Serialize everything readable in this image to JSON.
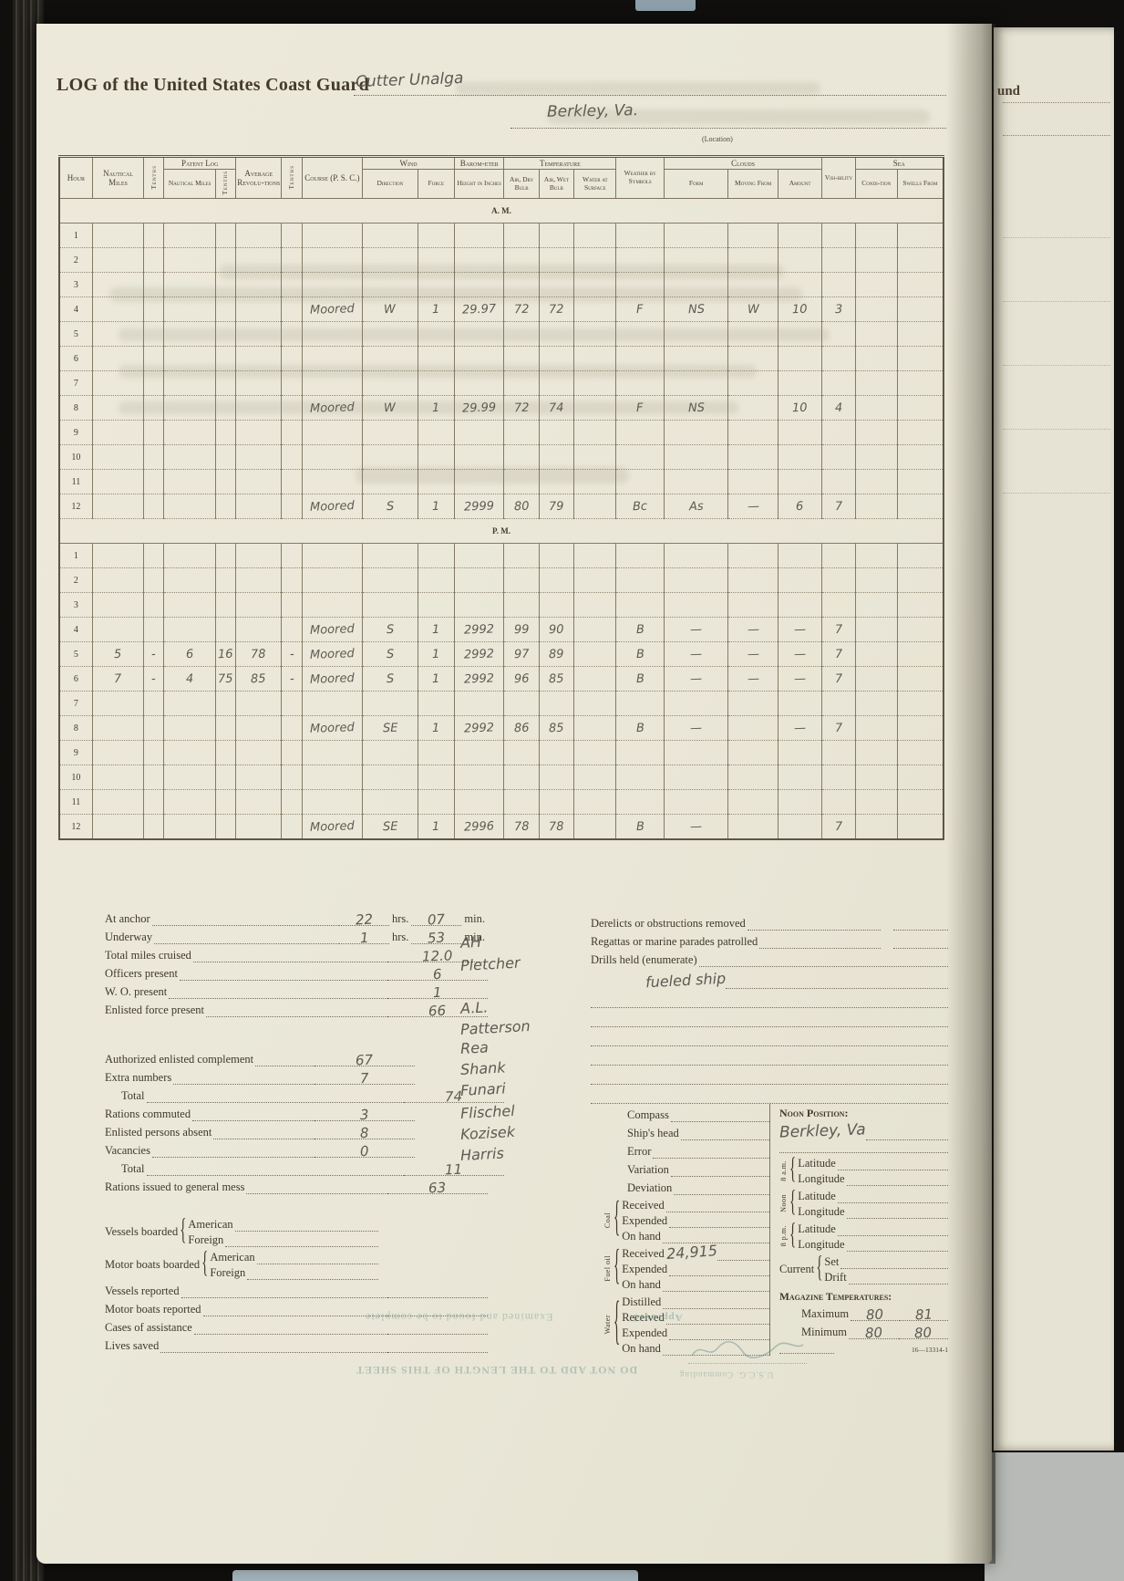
{
  "header": {
    "title": "LOG of the United States Coast Guard",
    "vessel": "Cutter Unalga",
    "location": "Berkley, Va.",
    "location_caption": "(Location)"
  },
  "log_table": {
    "columns": {
      "hour": "Hour",
      "nautical_miles": "Nautical Miles",
      "tenths": "Tenths",
      "patent_log": "Patent Log",
      "avg_revolutions": "Average Revolu-tions",
      "course": "Course (P. S. C.)",
      "wind": "Wind",
      "direction": "Direction",
      "force": "Force",
      "barometer": "Barom-eter",
      "height_in_inches": "Height in Inches",
      "temperature": "Temperature",
      "air_dry_bulb": "Air, Dry Bulb",
      "air_wet_bulb": "Air, Wet Bulb",
      "water_at_surface": "Water at Surface",
      "weather_by_symbols": "Weather by Symbols",
      "clouds": "Clouds",
      "form": "Form",
      "moving_from": "Moving From",
      "amount": "Amount",
      "visibility": "Visi-bility",
      "sea": "Sea",
      "condition": "Condi-tion",
      "swells_from": "Swells From"
    },
    "rows": [
      {
        "t": "s",
        "label": "A. M."
      },
      {
        "t": "h",
        "hour": "1",
        "c": {}
      },
      {
        "t": "h",
        "hour": "2",
        "c": {}
      },
      {
        "t": "h",
        "hour": "3",
        "c": {}
      },
      {
        "t": "h",
        "hour": "4",
        "c": {
          "course": "Moored",
          "dir": "W",
          "force": "1",
          "bar": "29.97",
          "dry": "72",
          "wet": "72",
          "wx": "F",
          "cForm": "NS",
          "cMov": "W",
          "cAmt": "10",
          "vis": "3"
        }
      },
      {
        "t": "h",
        "hour": "5",
        "c": {}
      },
      {
        "t": "h",
        "hour": "6",
        "c": {}
      },
      {
        "t": "h",
        "hour": "7",
        "c": {}
      },
      {
        "t": "h",
        "hour": "8",
        "c": {
          "course": "Moored",
          "dir": "W",
          "force": "1",
          "bar": "29.99",
          "dry": "72",
          "wet": "74",
          "wx": "F",
          "cForm": "NS",
          "cAmt": "10",
          "vis": "4"
        }
      },
      {
        "t": "h",
        "hour": "9",
        "c": {}
      },
      {
        "t": "h",
        "hour": "10",
        "c": {}
      },
      {
        "t": "h",
        "hour": "11",
        "c": {}
      },
      {
        "t": "h",
        "hour": "12",
        "c": {
          "course": "Moored",
          "dir": "S",
          "force": "1",
          "bar": "2999",
          "dry": "80",
          "wet": "79",
          "wx": "Bc",
          "cForm": "As",
          "cMov": "—",
          "cAmt": "6",
          "vis": "7"
        }
      },
      {
        "t": "s",
        "label": "P. M."
      },
      {
        "t": "h",
        "hour": "1",
        "c": {}
      },
      {
        "t": "h",
        "hour": "2",
        "c": {}
      },
      {
        "t": "h",
        "hour": "3",
        "c": {}
      },
      {
        "t": "h",
        "hour": "4",
        "c": {
          "course": "Moored",
          "dir": "S",
          "force": "1",
          "bar": "2992",
          "dry": "99",
          "wet": "90",
          "wx": "B",
          "cForm": "—",
          "cMov": "—",
          "cAmt": "—",
          "vis": "7"
        }
      },
      {
        "t": "h",
        "hour": "5",
        "c": {
          "nm": "5",
          "nmT": "-",
          "plNm": "6",
          "plT": "16",
          "rev": "78",
          "revT": "-",
          "course": "Moored",
          "dir": "S",
          "force": "1",
          "bar": "2992",
          "dry": "97",
          "wet": "89",
          "wx": "B",
          "cForm": "—",
          "cMov": "—",
          "cAmt": "—",
          "vis": "7"
        }
      },
      {
        "t": "h",
        "hour": "6",
        "c": {
          "nm": "7",
          "nmT": "-",
          "plNm": "4",
          "plT": "75",
          "rev": "85",
          "revT": "-",
          "course": "Moored",
          "dir": "S",
          "force": "1",
          "bar": "2992",
          "dry": "96",
          "wet": "85",
          "wx": "B",
          "cForm": "—",
          "cMov": "—",
          "cAmt": "—",
          "vis": "7"
        }
      },
      {
        "t": "h",
        "hour": "7",
        "c": {}
      },
      {
        "t": "h",
        "hour": "8",
        "c": {
          "course": "Moored",
          "dir": "SE",
          "force": "1",
          "bar": "2992",
          "dry": "86",
          "wet": "85",
          "wx": "B",
          "cForm": "—",
          "cAmt": "—",
          "vis": "7"
        }
      },
      {
        "t": "h",
        "hour": "9",
        "c": {}
      },
      {
        "t": "h",
        "hour": "10",
        "c": {}
      },
      {
        "t": "h",
        "hour": "11",
        "c": {}
      },
      {
        "t": "h",
        "hour": "12",
        "c": {
          "course": "Moored",
          "dir": "SE",
          "force": "1",
          "bar": "2996",
          "dry": "78",
          "wet": "78",
          "wx": "B",
          "cForm": "—",
          "vis": "7"
        }
      }
    ]
  },
  "summary_left": {
    "lines": [
      {
        "label": "At anchor",
        "value": "22",
        "unit": "hrs.",
        "value2": "07",
        "unit2": "min."
      },
      {
        "label": "Underway",
        "value": "1",
        "unit": "hrs.",
        "value2": "53",
        "unit2": "min."
      },
      {
        "label": "Total miles cruised",
        "value": "12.0"
      },
      {
        "label": "Officers present",
        "value": "6"
      },
      {
        "label": "W. O. present",
        "value": "1"
      },
      {
        "label": "Enlisted force present",
        "value": "66"
      },
      {
        "gap": 34
      },
      {
        "label": "Authorized enlisted complement",
        "value": "67",
        "narrow": true
      },
      {
        "label": "Extra numbers",
        "value": "7",
        "narrow": true
      },
      {
        "label": "Total",
        "value": "74",
        "indent": true
      },
      {
        "label": "Rations commuted",
        "value": "3",
        "narrow": true
      },
      {
        "label": "Enlisted persons absent",
        "value": "8",
        "narrow": true
      },
      {
        "label": "Vacancies",
        "value": "0",
        "narrow": true
      },
      {
        "label": "Total",
        "value": "11",
        "indent": true
      },
      {
        "label": "Rations issued to general mess",
        "value": "63"
      },
      {
        "gap": 22
      },
      {
        "brace": "Vessels boarded",
        "subs": [
          "American",
          "Foreign"
        ]
      },
      {
        "brace": "Motor boats boarded",
        "subs": [
          "American",
          "Foreign"
        ]
      },
      {
        "label": "Vessels reported"
      },
      {
        "label": "Motor boats reported"
      },
      {
        "label": "Cases of assistance"
      },
      {
        "label": "Lives saved"
      }
    ]
  },
  "names_column": [
    "AH",
    "Pletcher",
    "A.L.",
    "Patterson",
    "Rea",
    "Shank",
    "Funari",
    "Flischel",
    "Kozisek",
    "Harris"
  ],
  "summary_right": {
    "misc_lines": [
      {
        "label": "Derelicts or obstructions removed",
        "split": true
      },
      {
        "label": "Regattas or marine parades patrolled",
        "split": true
      },
      {
        "label": "Drills held (enumerate)",
        "value": "fueled ship"
      }
    ],
    "blank_line_count": 6,
    "nav_lines": [
      "Compass",
      "Ship's head",
      "Error",
      "Variation",
      "Deviation"
    ],
    "coal": {
      "label": "Coal",
      "items": [
        "Received",
        "Expended",
        "On hand"
      ]
    },
    "fuel": {
      "label": "Fuel oil",
      "items": [
        "Received",
        "Expended",
        "On hand"
      ],
      "received_value": "24,915"
    },
    "water": {
      "label": "Water",
      "items": [
        "Distilled",
        "Received",
        "Expended",
        "On hand"
      ]
    },
    "noon_position": {
      "title": "Noon Position:",
      "value": "Berkley, Va"
    },
    "position_groups": [
      {
        "label": "8 a.m.",
        "items": [
          "Latitude",
          "Longitude"
        ]
      },
      {
        "label": "Noon",
        "items": [
          "Latitude",
          "Longitude"
        ]
      },
      {
        "label": "8 p.m.",
        "items": [
          "Latitude",
          "Longitude"
        ]
      }
    ],
    "current": {
      "label": "Current",
      "items": [
        "Set",
        "Drift"
      ]
    },
    "magazine": {
      "title": "Magazine Temperatures:",
      "max_label": "Maximum",
      "max_values": [
        "80",
        "81"
      ],
      "min_label": "Minimum",
      "min_values": [
        "80",
        "80"
      ]
    },
    "form_number": "16—13314-1"
  },
  "bleedthrough": {
    "approved": "Approved.",
    "line1": "Examined and found to be complete",
    "line2": "DO NOT ADD TO THE LENGTH OF THIS SHEET",
    "commanding": "U.S.C.G. Commanding",
    "next_page_fragment": "und"
  }
}
